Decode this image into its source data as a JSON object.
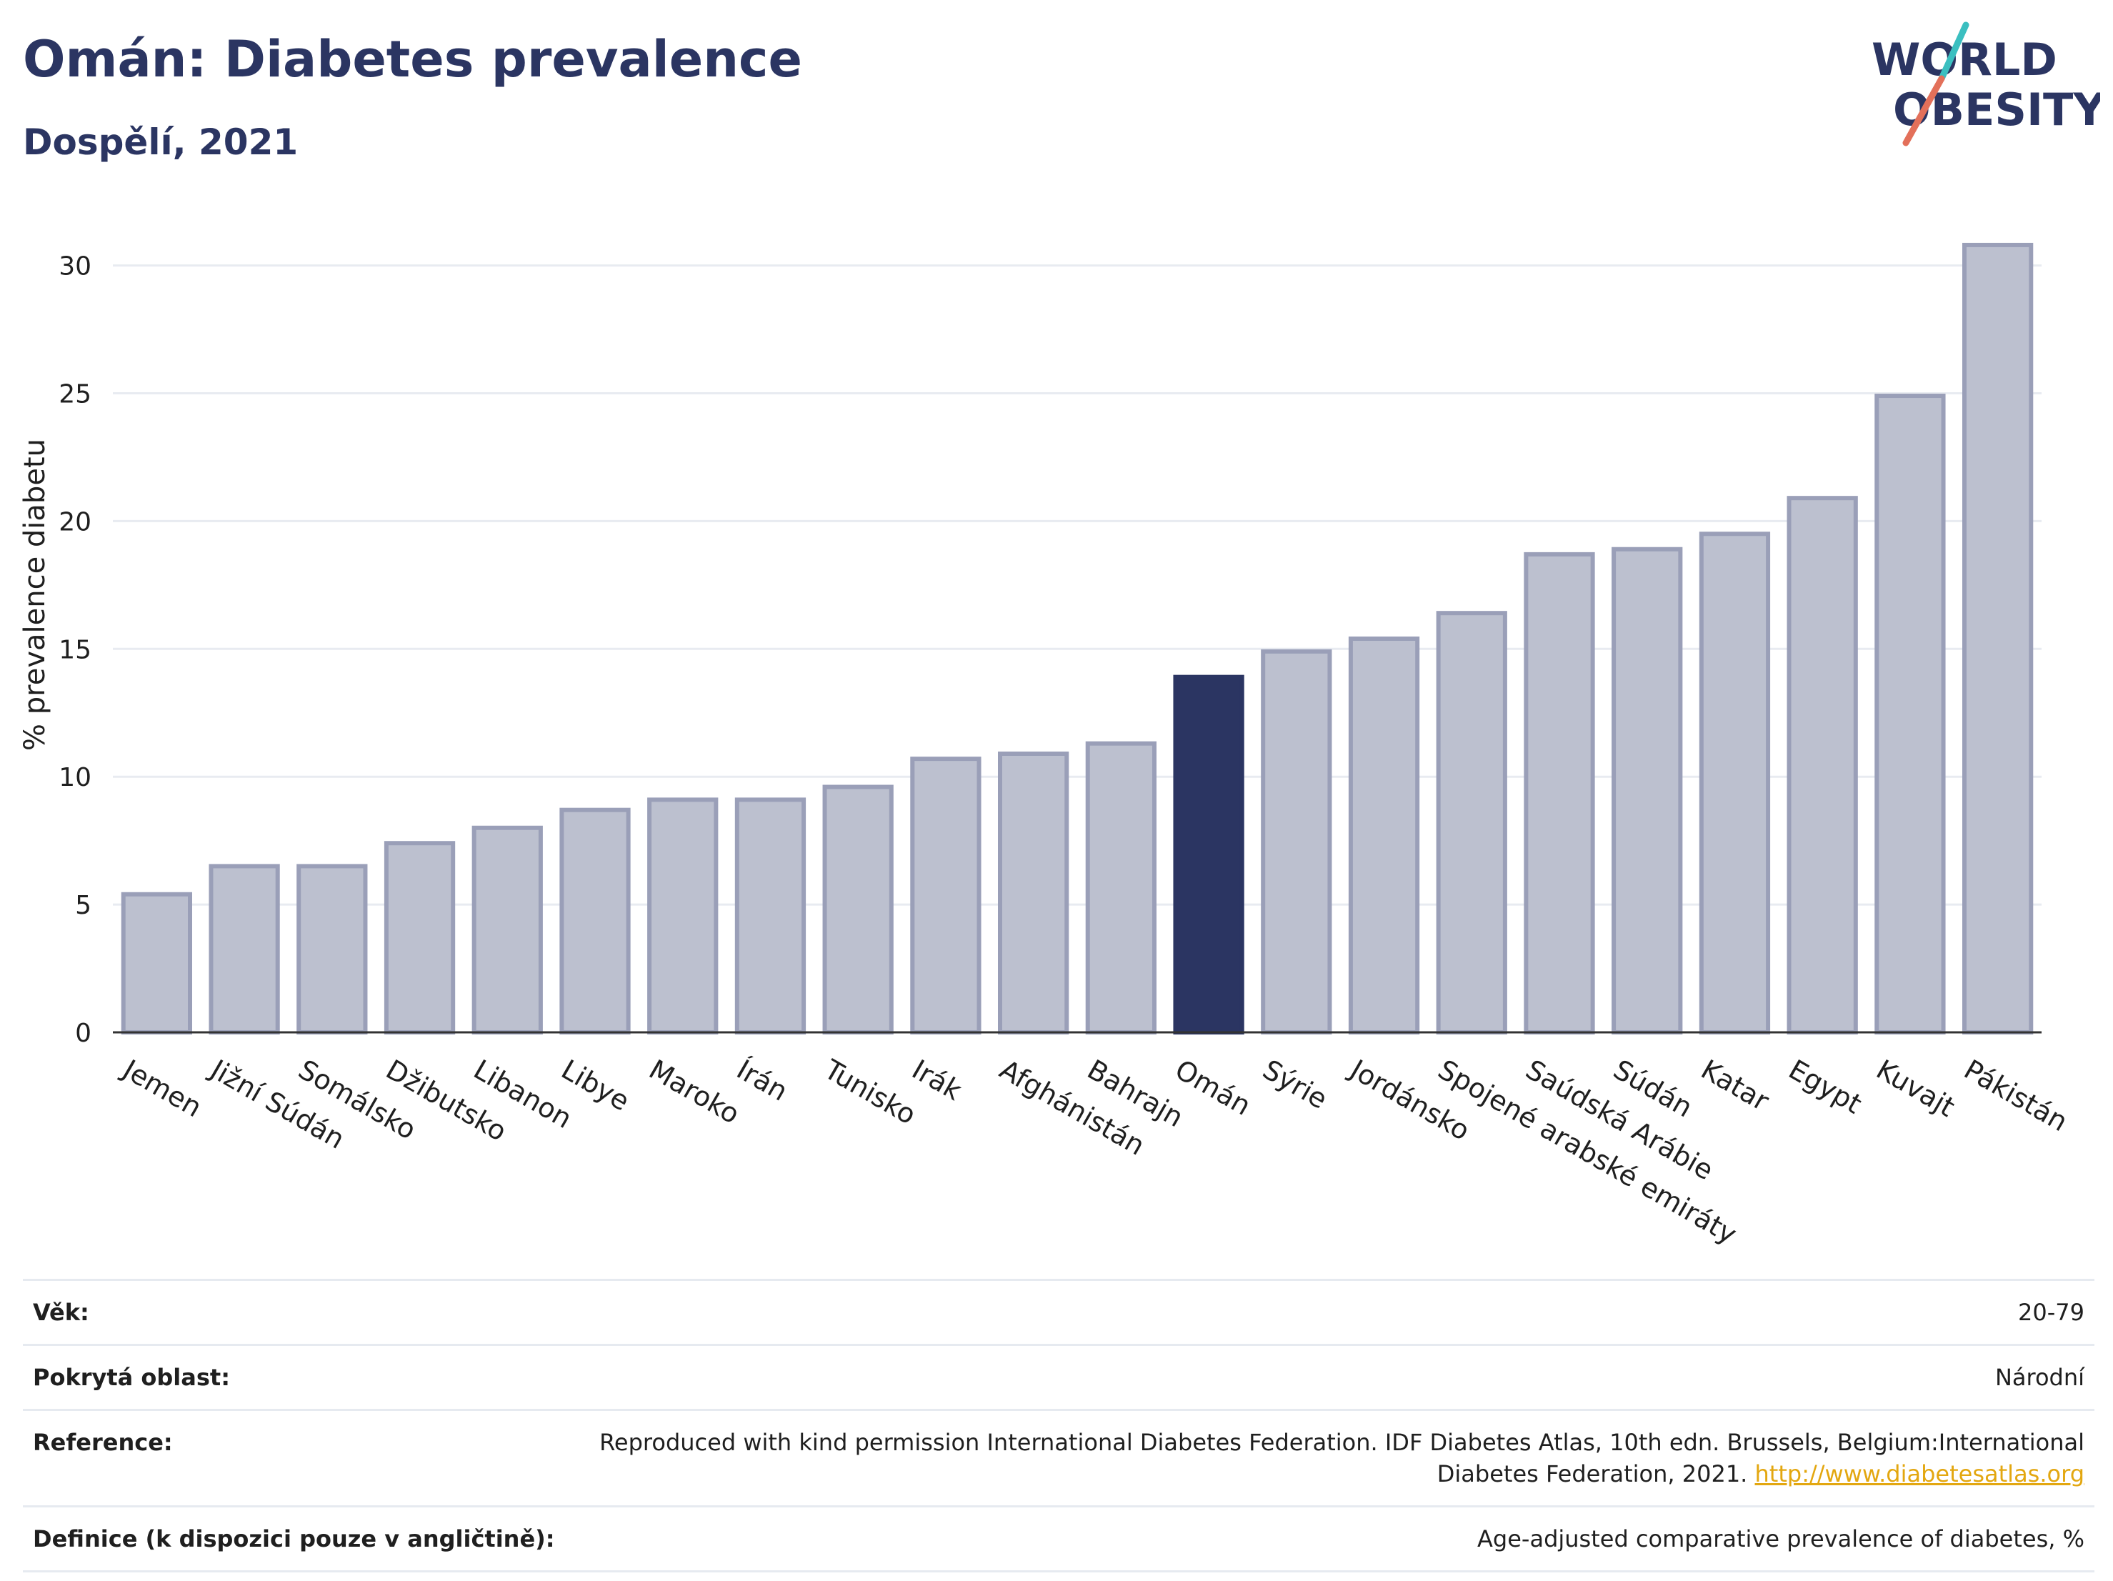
{
  "header": {
    "title": "Omán: Diabetes prevalence",
    "subtitle": "Dospělí, 2021"
  },
  "logo": {
    "line1": "WORLD",
    "line2": "OBESITY",
    "colors": {
      "text": "#2b3562",
      "slash_top": "#3bbfc0",
      "slash_bottom": "#e3705a"
    }
  },
  "chart_data": {
    "type": "bar",
    "ylabel": "% prevalence diabetu",
    "xlabel": "",
    "ylim": [
      0,
      32
    ],
    "yticks": [
      0,
      5,
      10,
      15,
      20,
      25,
      30
    ],
    "grid": true,
    "highlight": "Omán",
    "colors": {
      "bar": "#bcc0cf",
      "bar_edge": "#9a9fb8",
      "highlight": "#2b3562",
      "grid": "#e8ebf1"
    },
    "categories": [
      "Jemen",
      "Jižní Súdán",
      "Somálsko",
      "Džibutsko",
      "Libanon",
      "Libye",
      "Maroko",
      "Írán",
      "Tunisko",
      "Irák",
      "Afghánistán",
      "Bahrajn",
      "Omán",
      "Sýrie",
      "Jordánsko",
      "Spojené arabské emiráty",
      "Saúdská Arábie",
      "Súdán",
      "Katar",
      "Egypt",
      "Kuvajt",
      "Pákistán"
    ],
    "values": [
      5.4,
      6.5,
      6.5,
      7.4,
      8.0,
      8.7,
      9.1,
      9.1,
      9.6,
      10.7,
      10.9,
      11.3,
      13.9,
      14.9,
      15.4,
      16.4,
      18.7,
      18.9,
      19.5,
      20.9,
      24.9,
      30.8
    ]
  },
  "info": {
    "rows": [
      {
        "label": "Věk:",
        "value": "20-79"
      },
      {
        "label": "Pokrytá oblast:",
        "value": "Národní"
      },
      {
        "label": "Reference:",
        "value": "Reproduced with kind permission International Diabetes Federation.  IDF Diabetes Atlas, 10th edn. Brussels, Belgium:International Diabetes Federation, 2021. ",
        "link": "http://www.diabetesatlas.org"
      },
      {
        "label": "Definice (k dispozici pouze v angličtině):",
        "value": "Age-adjusted comparative prevalence of diabetes, %"
      }
    ]
  }
}
